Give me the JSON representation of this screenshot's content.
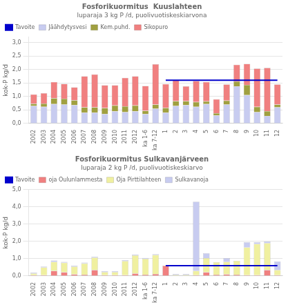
{
  "chart_data": [
    {
      "type": "bar",
      "title": "Fosforikuormitus  Kuuslahteen",
      "subtitle": "luparaja 3 kg P /d, puolivuotiskeskiarvona",
      "ylabel": "kok-P kg/d",
      "stacked": true,
      "grid": true,
      "legend": "upper left",
      "ylim": [
        0,
        3.2
      ],
      "yticks": [
        {
          "value": 0.0,
          "label": "0,0"
        },
        {
          "value": 0.5,
          "label": "0,5"
        },
        {
          "value": 1.0,
          "label": "1,0"
        },
        {
          "value": 1.5,
          "label": "1,5"
        },
        {
          "value": 2.0,
          "label": "2,0"
        },
        {
          "value": 2.5,
          "label": "2,5"
        },
        {
          "value": 3.0,
          "label": "3,0"
        }
      ],
      "categories": [
        "2002",
        "2003",
        "2004",
        "2005",
        "2006",
        "2007",
        "2008",
        "2009",
        "2010",
        "2011",
        "2012",
        "ka 1-6",
        "ka 7-12",
        "1",
        "2",
        "3",
        "4",
        "5",
        "6",
        "7",
        "8",
        "9",
        "10",
        "11",
        "12"
      ],
      "series": [
        {
          "name": "Jäähdytysvesi",
          "color": "#c8ccf0",
          "values": [
            0.65,
            0.62,
            0.72,
            0.7,
            0.68,
            0.4,
            0.4,
            0.35,
            0.45,
            0.42,
            0.45,
            0.35,
            0.55,
            0.4,
            0.65,
            0.68,
            0.62,
            0.72,
            0.3,
            0.7,
            1.38,
            1.05,
            0.42,
            0.28,
            0.6
          ]
        },
        {
          "name": "Kem.puhd.",
          "color": "#a0a040",
          "values": [
            0.08,
            0.12,
            0.22,
            0.22,
            0.18,
            0.2,
            0.2,
            0.22,
            0.22,
            0.22,
            0.22,
            0.12,
            0.15,
            0.18,
            0.18,
            0.15,
            0.18,
            0.1,
            0.08,
            0.15,
            0.18,
            0.38,
            0.2,
            0.18,
            0.1
          ]
        },
        {
          "name": "Sikopuro",
          "color": "#f08080",
          "values": [
            0.35,
            0.38,
            0.6,
            0.55,
            0.48,
            1.15,
            1.22,
            0.85,
            0.75,
            1.05,
            1.08,
            0.92,
            1.5,
            0.88,
            0.78,
            0.55,
            0.78,
            0.72,
            0.52,
            0.6,
            0.62,
            0.78,
            1.42,
            1.6,
            0.75
          ]
        },
        {
          "name": "Tavoite",
          "type": "line",
          "color": "#0000cc",
          "values": [
            null,
            null,
            null,
            null,
            null,
            null,
            null,
            null,
            null,
            null,
            null,
            null,
            null,
            1.6,
            1.6,
            1.6,
            1.6,
            1.6,
            1.6,
            1.6,
            1.6,
            1.6,
            1.6,
            1.6,
            1.6
          ]
        }
      ]
    },
    {
      "type": "bar",
      "title": "Fosforikuormitus Sulkavanjärveen",
      "subtitle": "luparaja 2 kg P /d, puolivuotiskeskiarvo",
      "ylabel": "kok-P kg/d",
      "stacked": true,
      "grid": true,
      "legend": "upper left",
      "ylim": [
        0,
        5.0
      ],
      "yticks": [
        {
          "value": 0.0,
          "label": "0,0"
        },
        {
          "value": 1.0,
          "label": "1,0"
        },
        {
          "value": 2.0,
          "label": "2,0"
        },
        {
          "value": 3.0,
          "label": "3,0"
        },
        {
          "value": 4.0,
          "label": "4,0"
        },
        {
          "value": 5.0,
          "label": "5,0"
        }
      ],
      "categories": [
        "2002",
        "2003",
        "2004",
        "2005",
        "2006",
        "2007",
        "2008",
        "2009",
        "2010",
        "2011",
        "2012",
        "ka 1-6",
        "ka 7-12",
        "1",
        "2",
        "3",
        "4",
        "5",
        "6",
        "7",
        "8",
        "9",
        "10",
        "11",
        "12"
      ],
      "series": [
        {
          "name": "oja Oulunlammesta",
          "color": "#f08080",
          "values": [
            0.05,
            0.05,
            0.3,
            0.22,
            0.1,
            0.08,
            0.35,
            0.05,
            0.05,
            0.05,
            0.15,
            0.08,
            0.12,
            0.6,
            0.02,
            0.02,
            0.05,
            0.22,
            0.08,
            0.1,
            0.08,
            0.05,
            0.05,
            0.35,
            0.05
          ]
        },
        {
          "name": "Oja Pirttilahteen",
          "color": "#f0f0a0",
          "values": [
            0.1,
            0.45,
            0.52,
            0.55,
            0.45,
            0.65,
            0.72,
            0.18,
            0.18,
            0.82,
            1.05,
            0.92,
            1.1,
            0.0,
            0.05,
            0.05,
            0.25,
            0.82,
            0.72,
            0.72,
            0.8,
            1.6,
            1.8,
            1.55,
            0.3
          ]
        },
        {
          "name": "Sulkavanoja",
          "color": "#c8ccf0",
          "values": [
            0.05,
            0.05,
            0.08,
            0.05,
            0.05,
            0.05,
            0.05,
            0.05,
            0.05,
            0.05,
            0.05,
            0.05,
            0.05,
            0.0,
            0.05,
            0.05,
            4.0,
            0.28,
            0.0,
            0.22,
            0.0,
            0.3,
            0.1,
            0.1,
            0.5
          ]
        },
        {
          "name": "Tavoite",
          "type": "line",
          "color": "#0000cc",
          "values": [
            null,
            null,
            null,
            null,
            null,
            null,
            null,
            null,
            null,
            null,
            null,
            null,
            null,
            0.6,
            0.6,
            0.6,
            0.6,
            0.6,
            0.6,
            0.6,
            0.6,
            0.6,
            0.6,
            0.6,
            0.6
          ]
        }
      ]
    }
  ]
}
